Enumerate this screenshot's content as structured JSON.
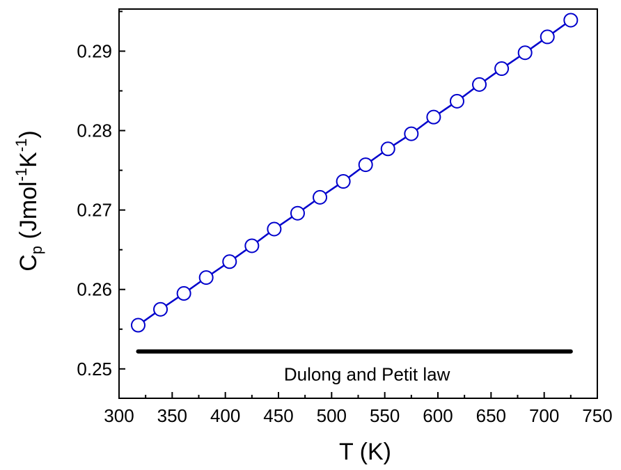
{
  "chart_data": {
    "type": "scatter",
    "title": "",
    "xlabel": "T (K)",
    "ylabel_main": "C",
    "ylabel_sub": "p",
    "ylabel_units_open": " (Jmol",
    "ylabel_units_exp1": "-1",
    "ylabel_units_mid": "K",
    "ylabel_units_exp2": "-1",
    "ylabel_units_close": ")",
    "xlim": [
      300,
      750
    ],
    "ylim": [
      0.2463,
      0.2953
    ],
    "xticks": [
      300,
      350,
      400,
      450,
      500,
      550,
      600,
      650,
      700,
      750
    ],
    "xtick_labels": [
      "300",
      "350",
      "400",
      "450",
      "500",
      "550",
      "600",
      "650",
      "700",
      "750"
    ],
    "yticks": [
      0.25,
      0.26,
      0.27,
      0.28,
      0.29
    ],
    "ytick_labels": [
      "0.25",
      "0.26",
      "0.27",
      "0.28",
      "0.29"
    ],
    "grid": false,
    "series": [
      {
        "marker": "open-circle",
        "color": "#0000cc",
        "x": [
          318,
          339,
          361,
          382,
          404,
          425,
          446,
          468,
          489,
          511,
          532,
          553,
          575,
          596,
          618,
          639,
          660,
          682,
          703,
          725
        ],
        "y": [
          0.2555,
          0.2575,
          0.2595,
          0.2615,
          0.2635,
          0.2655,
          0.2676,
          0.2696,
          0.2716,
          0.2736,
          0.2757,
          0.2777,
          0.2796,
          0.2817,
          0.2837,
          0.2858,
          0.2878,
          0.2898,
          0.2918,
          0.2939
        ]
      }
    ],
    "reference_line": {
      "label": "Dulong and Petit law",
      "y": 0.2522,
      "x_range": [
        318,
        725
      ],
      "color": "#000000"
    }
  }
}
